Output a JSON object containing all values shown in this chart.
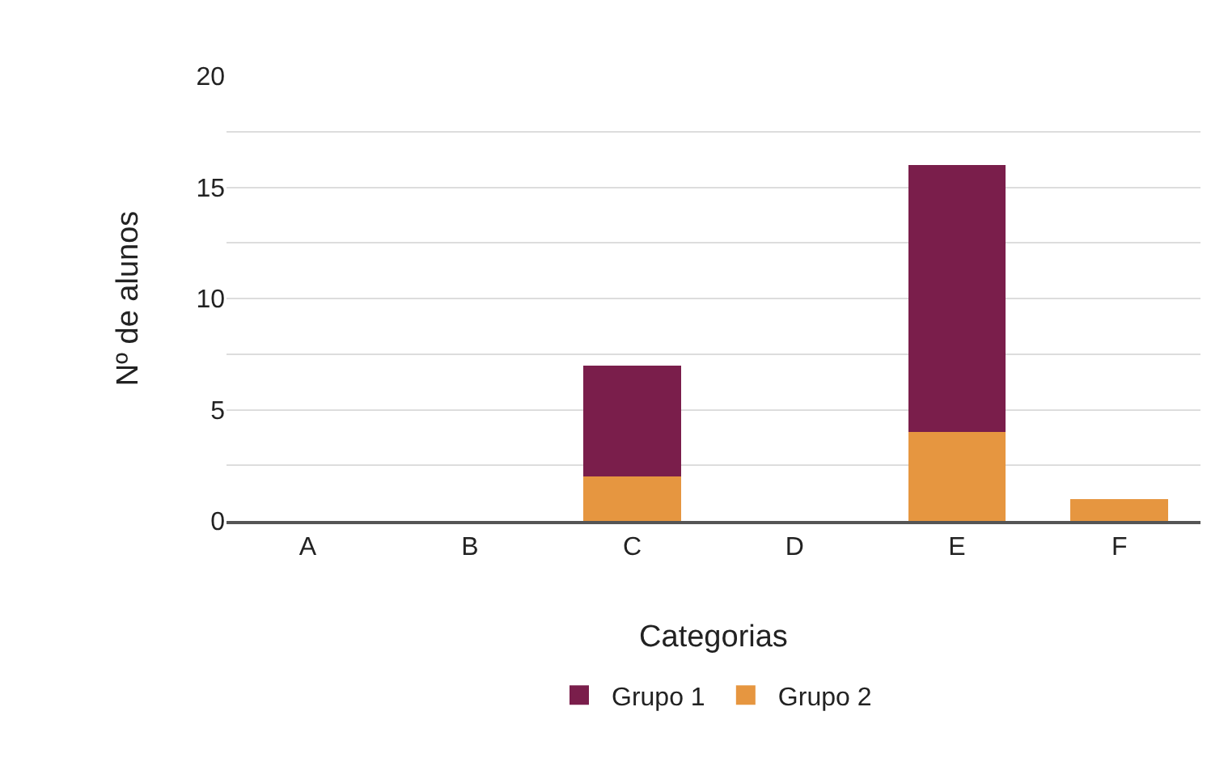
{
  "chart_data": {
    "type": "bar",
    "stacked": true,
    "xlabel": "Categorias",
    "ylabel": "Nº de alunos",
    "categories": [
      "A",
      "B",
      "C",
      "D",
      "E",
      "F"
    ],
    "series": [
      {
        "name": "Grupo 2",
        "color": "#e69640",
        "values": [
          0,
          0,
          2,
          0,
          4,
          1
        ]
      },
      {
        "name": "Grupo 1",
        "color": "#7a1e4b",
        "values": [
          0,
          0,
          5,
          0,
          12,
          0
        ]
      }
    ],
    "ylim": [
      0,
      20
    ],
    "yticks": [
      0,
      {
        "value": 2.5,
        "label": null
      },
      5,
      {
        "value": 7.5,
        "label": null
      },
      10,
      {
        "value": 12.5,
        "label": null
      },
      15,
      {
        "value": 17.5,
        "label": null
      },
      20
    ],
    "grid": "y",
    "legend": "bottom"
  }
}
